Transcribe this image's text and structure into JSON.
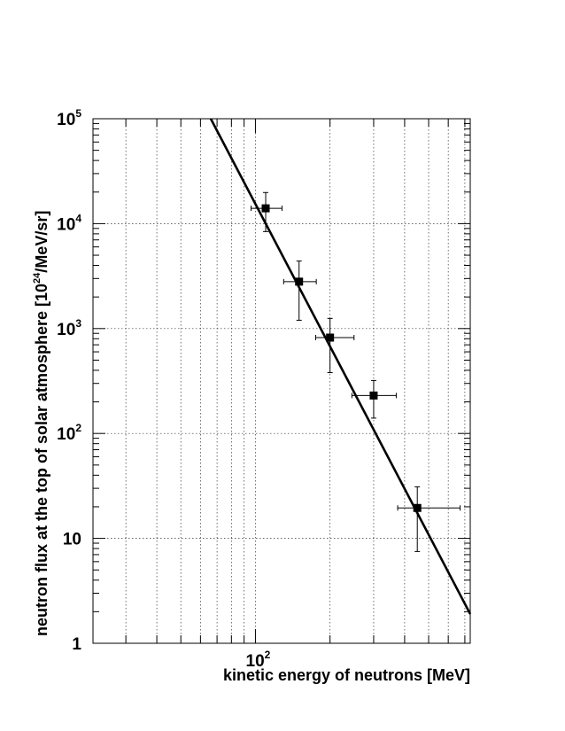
{
  "chart_data": {
    "type": "scatter",
    "title": "",
    "xlabel": "kinetic energy of neutrons [MeV]",
    "ylabel_parts": {
      "prefix": "neutron flux at the top of solar atmosphere [10",
      "exponent": "24",
      "suffix": "/MeV/sr]"
    },
    "xscale": "log",
    "yscale": "log",
    "xlim": [
      22.1,
      736
    ],
    "ylim": [
      1,
      100000
    ],
    "grid": true,
    "x_tick_labels": [
      {
        "value": 100,
        "base": "10",
        "exp": "2"
      }
    ],
    "y_tick_labels": [
      {
        "value": 1,
        "base": "1",
        "exp": ""
      },
      {
        "value": 10,
        "base": "10",
        "exp": ""
      },
      {
        "value": 100,
        "base": "10",
        "exp": "2"
      },
      {
        "value": 1000,
        "base": "10",
        "exp": "3"
      },
      {
        "value": 10000,
        "base": "10",
        "exp": "4"
      },
      {
        "value": 100000,
        "base": "10",
        "exp": "5"
      }
    ],
    "series": [
      {
        "type": "scatter",
        "marker": "square",
        "color": "#000000",
        "points": [
          {
            "x": 110,
            "y": 14000,
            "xerr": [
              96,
              128
            ],
            "yerr": [
              8400,
              19800
            ]
          },
          {
            "x": 150,
            "y": 2800,
            "xerr": [
              130,
              176
            ],
            "yerr": [
              1200,
              4400
            ]
          },
          {
            "x": 200,
            "y": 820,
            "xerr": [
              175,
              250
            ],
            "yerr": [
              380,
              1250
            ]
          },
          {
            "x": 300,
            "y": 230,
            "xerr": [
              245,
              370
            ],
            "yerr": [
              140,
              320
            ]
          },
          {
            "x": 450,
            "y": 19.5,
            "xerr": [
              375,
              670
            ],
            "yerr": [
              7.5,
              31
            ]
          }
        ]
      },
      {
        "type": "line",
        "color": "#000000",
        "points": [
          {
            "x": 66,
            "y": 100000
          },
          {
            "x": 736,
            "y": 1.9
          }
        ]
      }
    ]
  }
}
